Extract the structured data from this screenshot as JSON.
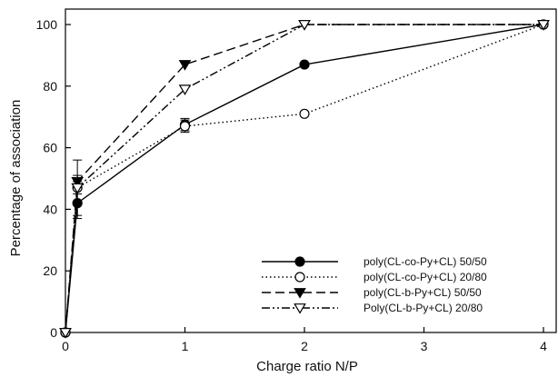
{
  "chart_data": {
    "type": "line",
    "xlabel": "Charge ratio N/P",
    "ylabel": "Percentage of association",
    "x_ticks": [
      0,
      1,
      2,
      3,
      4
    ],
    "y_ticks": [
      0,
      20,
      40,
      60,
      80,
      100
    ],
    "xlim": [
      0,
      4
    ],
    "ylim": [
      0,
      100
    ],
    "grid": false,
    "legend_position": "bottom-right",
    "series": [
      {
        "name": "poly(CL-co-Py+CL) 50/50",
        "marker": "filled-circle",
        "line": "solid",
        "x": [
          0,
          0.1,
          1,
          2,
          4
        ],
        "y": [
          0,
          42,
          67.5,
          87,
          100
        ],
        "err": [
          0,
          5,
          2,
          0,
          0
        ]
      },
      {
        "name": "poly(CL-co-Py+CL) 20/80",
        "marker": "open-circle",
        "line": "dotted",
        "x": [
          0,
          0.1,
          1,
          2,
          4
        ],
        "y": [
          0,
          47,
          67,
          71,
          100
        ],
        "err": [
          0,
          9,
          2,
          0,
          0
        ]
      },
      {
        "name": "poly(CL-b-Py+CL) 50/50",
        "marker": "filled-triangle-down",
        "line": "dashed",
        "x": [
          0,
          0.1,
          1,
          2,
          4
        ],
        "y": [
          0,
          49,
          87,
          100,
          100
        ],
        "err": [
          0,
          2,
          0,
          0,
          0
        ]
      },
      {
        "name": "Poly(CL-b-Py+CL) 20/80",
        "marker": "open-triangle-down",
        "line": "dash-dot-dot",
        "x": [
          0,
          0.1,
          1,
          2,
          4
        ],
        "y": [
          0,
          47,
          79,
          100,
          100
        ],
        "err": [
          0,
          2,
          0,
          0,
          0
        ]
      }
    ]
  }
}
